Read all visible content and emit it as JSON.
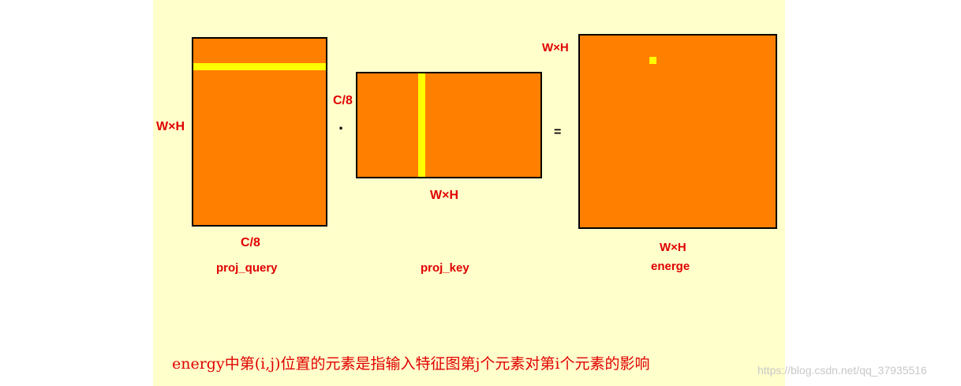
{
  "query": {
    "rows_label": "W×H",
    "cols_label": "C/8",
    "name": "proj_query"
  },
  "key": {
    "rows_label": "C/8",
    "cols_label": "W×H",
    "name": "proj_key"
  },
  "energy": {
    "rows_label": "W×H",
    "cols_label": "W×H",
    "name": "energe"
  },
  "operators": {
    "dot": "·",
    "equals": "="
  },
  "caption": "energy中第(i,j)位置的元素是指输入特征图第j个元素对第i个元素的影响",
  "watermark": "https://blog.csdn.net/qq_37935516",
  "colors": {
    "matrix": "#ff7f00",
    "highlight": "#ffff00",
    "label": "#e00000",
    "background": "#ffffcc"
  }
}
